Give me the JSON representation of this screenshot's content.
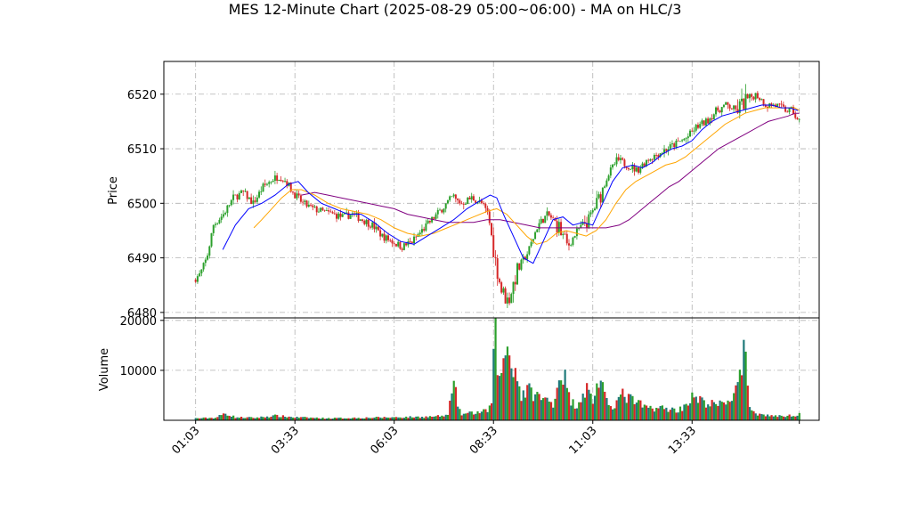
{
  "chart_data": {
    "type": "candlestick",
    "title": "MES 12-Minute Chart (2025-08-29 05:00~06:00) - MA on HLC/3",
    "price_panel": {
      "ylabel": "Price",
      "ylim": [
        6479,
        6526
      ],
      "yticks": [
        6480,
        6490,
        6500,
        6510,
        6520
      ]
    },
    "volume_panel": {
      "ylabel": "Volume",
      "ylim": [
        0,
        20500
      ],
      "yticks": [
        10000,
        20000
      ],
      "ytick_labels": [
        "10000",
        "20000"
      ]
    },
    "xticks": [
      {
        "label": "01:03",
        "minutes": 0
      },
      {
        "label": "03:33",
        "minutes": 150
      },
      {
        "label": "06:03",
        "minutes": 300
      },
      {
        "label": "08:33",
        "minutes": 450
      },
      {
        "label": "11:03",
        "minutes": 600
      },
      {
        "label": "13:33",
        "minutes": 750
      }
    ],
    "x_range_minutes": [
      -48,
      942
    ],
    "grid": true,
    "colors": {
      "up": "#2ca02c",
      "down": "#d62728",
      "ma_fast": "#0000ff",
      "ma_mid": "#ffa500",
      "ma_slow": "#800080",
      "vol_a": "#1f7a7a",
      "vol_b": "#2ca02c",
      "vol_c": "#d62728"
    },
    "price_path": [
      [
        0,
        6486
      ],
      [
        10,
        6487
      ],
      [
        20,
        6490
      ],
      [
        30,
        6496
      ],
      [
        45,
        6498
      ],
      [
        60,
        6501
      ],
      [
        75,
        6502
      ],
      [
        90,
        6500
      ],
      [
        105,
        6503
      ],
      [
        120,
        6504.5
      ],
      [
        130,
        6505
      ],
      [
        140,
        6504
      ],
      [
        150,
        6502
      ],
      [
        165,
        6500
      ],
      [
        180,
        6499
      ],
      [
        195,
        6498.5
      ],
      [
        210,
        6498
      ],
      [
        225,
        6497.5
      ],
      [
        240,
        6498
      ],
      [
        255,
        6497
      ],
      [
        270,
        6496
      ],
      [
        285,
        6494
      ],
      [
        300,
        6493
      ],
      [
        315,
        6492
      ],
      [
        330,
        6493
      ],
      [
        345,
        6495
      ],
      [
        360,
        6497
      ],
      [
        375,
        6499
      ],
      [
        390,
        6501
      ],
      [
        405,
        6500
      ],
      [
        420,
        6501
      ],
      [
        435,
        6500
      ],
      [
        445,
        6498
      ],
      [
        455,
        6490
      ],
      [
        465,
        6484
      ],
      [
        475,
        6482
      ],
      [
        490,
        6488
      ],
      [
        505,
        6491
      ],
      [
        520,
        6496
      ],
      [
        535,
        6498
      ],
      [
        550,
        6496
      ],
      [
        565,
        6492
      ],
      [
        580,
        6495
      ],
      [
        595,
        6497
      ],
      [
        610,
        6500
      ],
      [
        625,
        6505
      ],
      [
        640,
        6508
      ],
      [
        655,
        6507
      ],
      [
        670,
        6506
      ],
      [
        685,
        6508
      ],
      [
        700,
        6509
      ],
      [
        715,
        6510
      ],
      [
        730,
        6511
      ],
      [
        745,
        6512
      ],
      [
        760,
        6514
      ],
      [
        775,
        6515
      ],
      [
        790,
        6517
      ],
      [
        805,
        6518
      ],
      [
        820,
        6517
      ],
      [
        835,
        6519
      ],
      [
        850,
        6520
      ],
      [
        865,
        6518
      ],
      [
        880,
        6518
      ],
      [
        895,
        6517
      ],
      [
        905,
        6517
      ],
      [
        912,
        6515
      ]
    ],
    "ma_fast": [
      [
        41,
        6491.5
      ],
      [
        60,
        6496
      ],
      [
        80,
        6499
      ],
      [
        100,
        6500
      ],
      [
        120,
        6501.5
      ],
      [
        140,
        6503.5
      ],
      [
        155,
        6504
      ],
      [
        170,
        6502
      ],
      [
        190,
        6500
      ],
      [
        210,
        6499
      ],
      [
        230,
        6498
      ],
      [
        250,
        6498
      ],
      [
        270,
        6496.5
      ],
      [
        290,
        6494.5
      ],
      [
        310,
        6493
      ],
      [
        330,
        6492.5
      ],
      [
        350,
        6494
      ],
      [
        370,
        6495.5
      ],
      [
        390,
        6497
      ],
      [
        410,
        6499
      ],
      [
        430,
        6500.5
      ],
      [
        445,
        6501.5
      ],
      [
        455,
        6501
      ],
      [
        465,
        6498
      ],
      [
        480,
        6494
      ],
      [
        495,
        6490
      ],
      [
        510,
        6489
      ],
      [
        525,
        6493
      ],
      [
        540,
        6497
      ],
      [
        555,
        6497.5
      ],
      [
        570,
        6496
      ],
      [
        585,
        6496.5
      ],
      [
        600,
        6496
      ],
      [
        615,
        6500
      ],
      [
        630,
        6504
      ],
      [
        645,
        6506.5
      ],
      [
        660,
        6507
      ],
      [
        675,
        6506.5
      ],
      [
        690,
        6507.5
      ],
      [
        705,
        6509
      ],
      [
        720,
        6510
      ],
      [
        735,
        6510.5
      ],
      [
        750,
        6511.5
      ],
      [
        765,
        6513.5
      ],
      [
        780,
        6515
      ],
      [
        795,
        6516
      ],
      [
        810,
        6516.5
      ],
      [
        825,
        6517
      ],
      [
        840,
        6517.5
      ],
      [
        855,
        6518
      ],
      [
        870,
        6518
      ],
      [
        885,
        6517.5
      ],
      [
        898,
        6517.5
      ],
      [
        910,
        6517
      ]
    ],
    "ma_mid": [
      [
        88,
        6495.5
      ],
      [
        100,
        6497
      ],
      [
        115,
        6499
      ],
      [
        130,
        6501
      ],
      [
        145,
        6502.5
      ],
      [
        160,
        6502.5
      ],
      [
        180,
        6501.5
      ],
      [
        200,
        6500
      ],
      [
        220,
        6499
      ],
      [
        240,
        6498.5
      ],
      [
        260,
        6498
      ],
      [
        280,
        6497
      ],
      [
        300,
        6495.5
      ],
      [
        320,
        6494.5
      ],
      [
        340,
        6494
      ],
      [
        360,
        6494.5
      ],
      [
        380,
        6495.5
      ],
      [
        400,
        6496.5
      ],
      [
        420,
        6497.5
      ],
      [
        440,
        6498.5
      ],
      [
        455,
        6499
      ],
      [
        470,
        6498
      ],
      [
        485,
        6496
      ],
      [
        500,
        6494
      ],
      [
        515,
        6492.5
      ],
      [
        530,
        6493
      ],
      [
        545,
        6494.5
      ],
      [
        560,
        6495
      ],
      [
        575,
        6494.5
      ],
      [
        590,
        6494
      ],
      [
        605,
        6495
      ],
      [
        620,
        6497
      ],
      [
        635,
        6500
      ],
      [
        650,
        6502.5
      ],
      [
        665,
        6504
      ],
      [
        680,
        6505
      ],
      [
        695,
        6506
      ],
      [
        710,
        6507
      ],
      [
        725,
        6507.5
      ],
      [
        740,
        6508.5
      ],
      [
        755,
        6510
      ],
      [
        770,
        6511.5
      ],
      [
        785,
        6513
      ],
      [
        800,
        6514.5
      ],
      [
        815,
        6515.5
      ],
      [
        830,
        6516.5
      ],
      [
        845,
        6517
      ],
      [
        860,
        6517.5
      ],
      [
        875,
        6517.5
      ],
      [
        890,
        6517.5
      ],
      [
        905,
        6517.5
      ],
      [
        912,
        6517
      ]
    ],
    "ma_slow": [
      [
        160,
        6501.5
      ],
      [
        180,
        6502
      ],
      [
        200,
        6501.5
      ],
      [
        220,
        6501
      ],
      [
        240,
        6500.5
      ],
      [
        260,
        6500
      ],
      [
        280,
        6499.5
      ],
      [
        300,
        6499
      ],
      [
        320,
        6498
      ],
      [
        340,
        6497.5
      ],
      [
        360,
        6497
      ],
      [
        380,
        6496.5
      ],
      [
        400,
        6496.5
      ],
      [
        420,
        6496.5
      ],
      [
        440,
        6497
      ],
      [
        460,
        6497
      ],
      [
        480,
        6496.5
      ],
      [
        500,
        6496
      ],
      [
        520,
        6495.5
      ],
      [
        540,
        6495.5
      ],
      [
        560,
        6495.5
      ],
      [
        580,
        6495.5
      ],
      [
        600,
        6495.5
      ],
      [
        620,
        6495.5
      ],
      [
        640,
        6496
      ],
      [
        655,
        6497
      ],
      [
        670,
        6498.5
      ],
      [
        685,
        6500
      ],
      [
        700,
        6501.5
      ],
      [
        715,
        6503
      ],
      [
        730,
        6504
      ],
      [
        745,
        6505.5
      ],
      [
        760,
        6507
      ],
      [
        775,
        6508.5
      ],
      [
        790,
        6510
      ],
      [
        805,
        6511
      ],
      [
        820,
        6512
      ],
      [
        835,
        6513
      ],
      [
        850,
        6514
      ],
      [
        865,
        6515
      ],
      [
        880,
        6515.5
      ],
      [
        895,
        6516
      ],
      [
        905,
        6516.5
      ],
      [
        912,
        6516.5
      ]
    ],
    "volume_profile": [
      [
        0,
        400
      ],
      [
        30,
        500
      ],
      [
        45,
        1400
      ],
      [
        60,
        600
      ],
      [
        90,
        500
      ],
      [
        120,
        900
      ],
      [
        150,
        600
      ],
      [
        200,
        400
      ],
      [
        250,
        500
      ],
      [
        300,
        600
      ],
      [
        350,
        700
      ],
      [
        380,
        900
      ],
      [
        390,
        6800
      ],
      [
        400,
        1200
      ],
      [
        420,
        1500
      ],
      [
        440,
        1800
      ],
      [
        448,
        3500
      ],
      [
        452,
        19000
      ],
      [
        456,
        12000
      ],
      [
        462,
        8000
      ],
      [
        468,
        15000
      ],
      [
        474,
        13500
      ],
      [
        480,
        11500
      ],
      [
        486,
        8500
      ],
      [
        492,
        5000
      ],
      [
        500,
        6000
      ],
      [
        510,
        5500
      ],
      [
        520,
        4500
      ],
      [
        530,
        4000
      ],
      [
        540,
        3500
      ],
      [
        548,
        8000
      ],
      [
        555,
        10000
      ],
      [
        565,
        4000
      ],
      [
        575,
        3000
      ],
      [
        590,
        6500
      ],
      [
        600,
        4000
      ],
      [
        610,
        8500
      ],
      [
        620,
        3500
      ],
      [
        630,
        3000
      ],
      [
        645,
        5000
      ],
      [
        660,
        4000
      ],
      [
        680,
        2500
      ],
      [
        700,
        2500
      ],
      [
        730,
        2000
      ],
      [
        750,
        4500
      ],
      [
        770,
        3500
      ],
      [
        790,
        3000
      ],
      [
        810,
        4500
      ],
      [
        820,
        7000
      ],
      [
        826,
        10000
      ],
      [
        830,
        15000
      ],
      [
        835,
        3000
      ],
      [
        850,
        1200
      ],
      [
        880,
        800
      ],
      [
        905,
        1000
      ],
      [
        912,
        1500
      ]
    ]
  }
}
